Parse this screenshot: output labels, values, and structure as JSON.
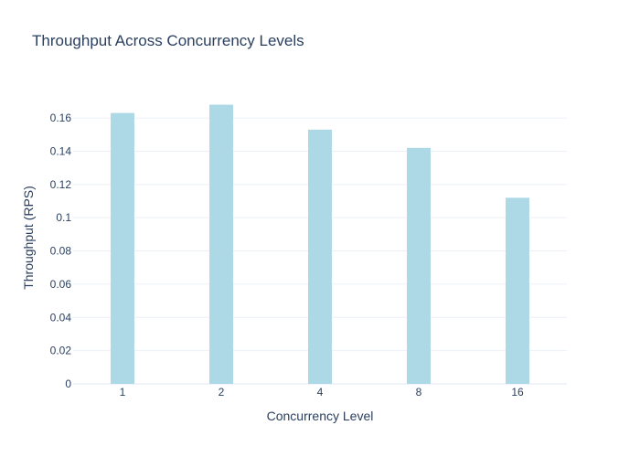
{
  "chart_data": {
    "type": "bar",
    "title": "Throughput Across Concurrency Levels",
    "xlabel": "Concurrency Level",
    "ylabel": "Throughput (RPS)",
    "categories": [
      "1",
      "2",
      "4",
      "8",
      "16"
    ],
    "values": [
      0.163,
      0.168,
      0.153,
      0.142,
      0.112
    ],
    "ylim": [
      0,
      0.176
    ],
    "yticks": [
      0,
      0.02,
      0.04,
      0.06,
      0.08,
      0.1,
      0.12,
      0.14,
      0.16
    ],
    "ytick_labels": [
      "0",
      "0.02",
      "0.04",
      "0.06",
      "0.08",
      "0.1",
      "0.12",
      "0.14",
      "0.16"
    ],
    "grid": true,
    "legend": "none",
    "colors": {
      "bar": "#add8e6",
      "title": "#2a3f5f",
      "text": "#2a3f5f",
      "grid": "#ebf0f8",
      "axis": "#ebf0f8",
      "background": "#ffffff"
    }
  }
}
